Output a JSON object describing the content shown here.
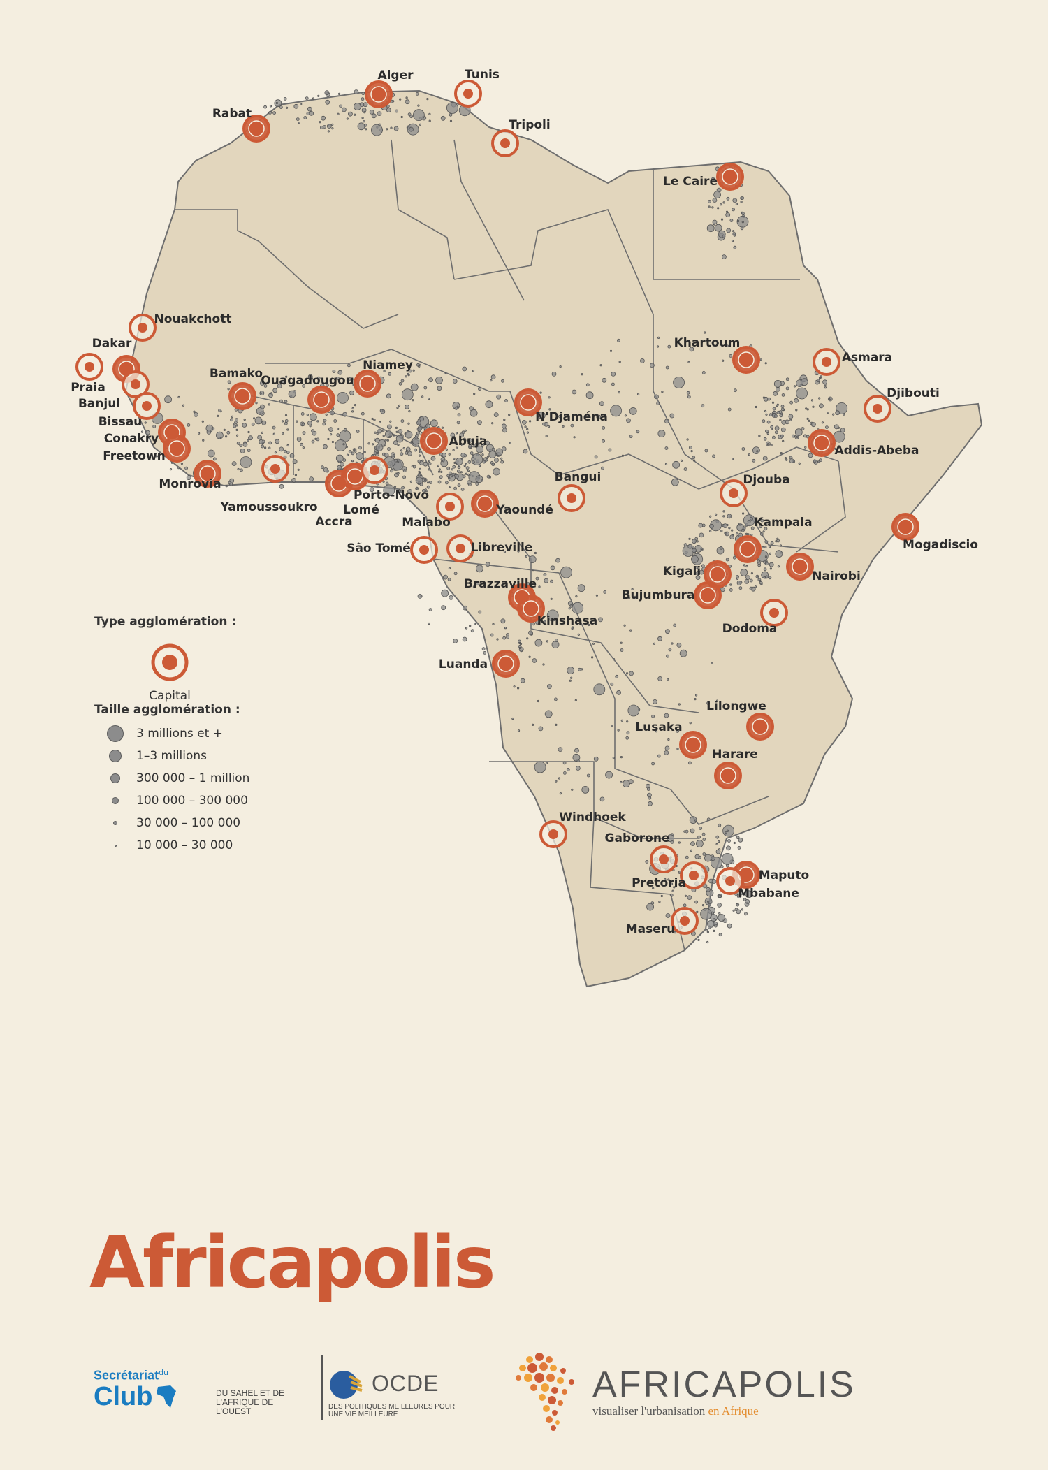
{
  "map": {
    "capitals": [
      {
        "name": "Alger"
      },
      {
        "name": "Tunis"
      },
      {
        "name": "Rabat"
      },
      {
        "name": "Tripoli"
      },
      {
        "name": "Le Caire"
      },
      {
        "name": "Nouakchott"
      },
      {
        "name": "Dakar"
      },
      {
        "name": "Praia"
      },
      {
        "name": "Banjul"
      },
      {
        "name": "Bissau"
      },
      {
        "name": "Conakry"
      },
      {
        "name": "Freetown"
      },
      {
        "name": "Monrovia"
      },
      {
        "name": "Bamako"
      },
      {
        "name": "Ouagadougou"
      },
      {
        "name": "Niamey"
      },
      {
        "name": "Yamoussoukro"
      },
      {
        "name": "Accra"
      },
      {
        "name": "Lomé"
      },
      {
        "name": "Porto-Novo"
      },
      {
        "name": "Abuja"
      },
      {
        "name": "N'Djaména"
      },
      {
        "name": "Khartoum"
      },
      {
        "name": "Asmara"
      },
      {
        "name": "Djibouti"
      },
      {
        "name": "Addis-Abeba"
      },
      {
        "name": "Malabo"
      },
      {
        "name": "Yaoundé"
      },
      {
        "name": "Bangui"
      },
      {
        "name": "Djouba"
      },
      {
        "name": "Kampala"
      },
      {
        "name": "Mogadiscio"
      },
      {
        "name": "São Tomé"
      },
      {
        "name": "Libreville"
      },
      {
        "name": "Nairobi"
      },
      {
        "name": "Kigali"
      },
      {
        "name": "Brazzaville"
      },
      {
        "name": "Bujumbura"
      },
      {
        "name": "Kinshasa"
      },
      {
        "name": "Dodoma"
      },
      {
        "name": "Luanda"
      },
      {
        "name": "Lilongwe"
      },
      {
        "name": "Lusaka"
      },
      {
        "name": "Harare"
      },
      {
        "name": "Windhoek"
      },
      {
        "name": "Gaborone"
      },
      {
        "name": "Pretoria"
      },
      {
        "name": "Maputo"
      },
      {
        "name": "Mbabane"
      },
      {
        "name": "Maseru"
      }
    ]
  },
  "legend": {
    "type_title": "Type agglomération :",
    "capital_label": "Capital",
    "size_title": "Taille agglomération :",
    "sizes": [
      "3 millions et +",
      "1–3 millions",
      "300 000 – 1 million",
      "100 000 – 300 000",
      "30 000 – 100 000",
      "10 000 – 30 000"
    ]
  },
  "title": "Africapolis",
  "logos": {
    "swac_secretariat": "Secrétariat",
    "swac_du": "du",
    "swac_club": "Club",
    "swac_subtitle": "DU SAHEL ET DE L'AFRIQUE DE L'OUEST",
    "oecd_name": "OCDE",
    "oecd_tagline": "DES POLITIQUES MEILLEURES POUR UNE VIE MEILLEURE",
    "africapolis_name": "AFRICAPOLIS",
    "africapolis_tag_main": "visualiser l'urbanisation",
    "africapolis_tag_accent": "en Afrique"
  },
  "colors": {
    "background": "#f4eee0",
    "land": "#e2d6bd",
    "border": "#6e6e6e",
    "capital": "#cc5a36",
    "dot": "#8c8c8c"
  }
}
